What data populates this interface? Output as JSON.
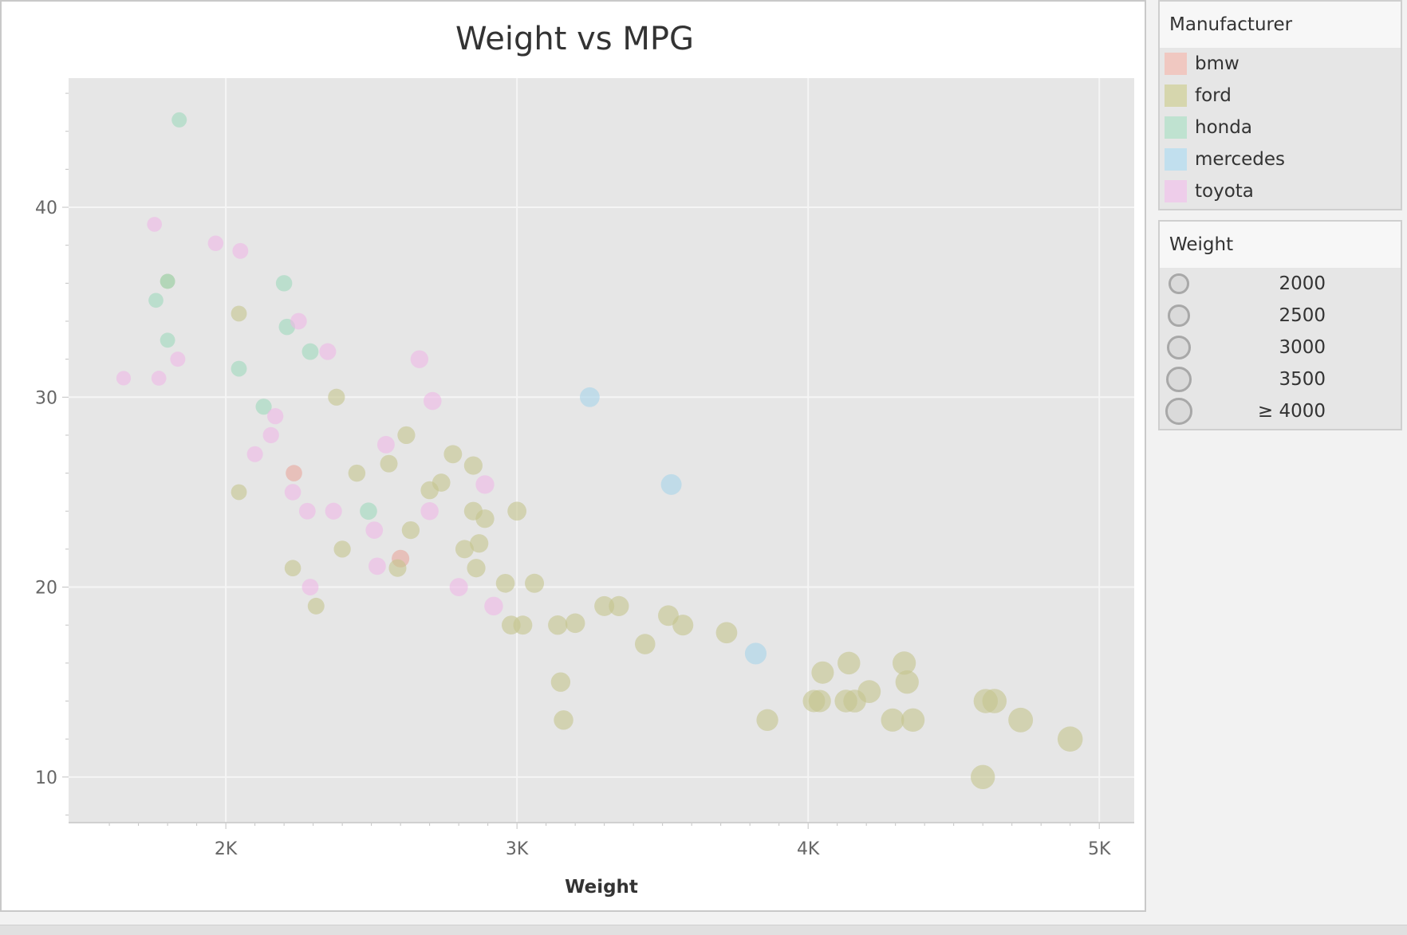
{
  "chart_data": {
    "type": "scatter",
    "title": "Weight vs MPG",
    "xlabel": "Weight",
    "ylabel": "",
    "xlim": [
      1460,
      5120
    ],
    "ylim": [
      7.6,
      46.8
    ],
    "x_ticks": [
      2000,
      3000,
      4000,
      5000
    ],
    "x_tick_labels": [
      "2K",
      "3K",
      "4K",
      "5K"
    ],
    "y_ticks": [
      10,
      20,
      30,
      40
    ],
    "y_tick_labels": [
      "10",
      "20",
      "30",
      "40"
    ],
    "grid": true,
    "legend_position": "right",
    "series": [
      {
        "name": "bmw",
        "color": "#e8a79c",
        "points": [
          [
            2234,
            26
          ],
          [
            2600,
            21.5
          ]
        ]
      },
      {
        "name": "ford",
        "color": "#c4c48d",
        "points": [
          [
            1800,
            36.1
          ],
          [
            2045,
            34.4
          ],
          [
            2045,
            25
          ],
          [
            2380,
            30
          ],
          [
            2230,
            21
          ],
          [
            2310,
            19
          ],
          [
            2450,
            26
          ],
          [
            2400,
            22
          ],
          [
            2560,
            26.5
          ],
          [
            2620,
            28
          ],
          [
            2590,
            21
          ],
          [
            2635,
            23
          ],
          [
            2700,
            25.1
          ],
          [
            2740,
            25.5
          ],
          [
            2780,
            27
          ],
          [
            2850,
            26.4
          ],
          [
            2820,
            22
          ],
          [
            2870,
            22.3
          ],
          [
            2850,
            24
          ],
          [
            2890,
            23.6
          ],
          [
            2860,
            21
          ],
          [
            3000,
            24
          ],
          [
            2960,
            20.2
          ],
          [
            3060,
            20.2
          ],
          [
            2980,
            18
          ],
          [
            3020,
            18
          ],
          [
            3140,
            18
          ],
          [
            3200,
            18.1
          ],
          [
            3300,
            19
          ],
          [
            3350,
            19
          ],
          [
            3150,
            15
          ],
          [
            3160,
            13
          ],
          [
            3440,
            17
          ],
          [
            3520,
            18.5
          ],
          [
            3570,
            18
          ],
          [
            3720,
            17.6
          ],
          [
            3860,
            13
          ],
          [
            4040,
            14
          ],
          [
            4050,
            15.5
          ],
          [
            4020,
            14
          ],
          [
            4140,
            16
          ],
          [
            4130,
            14
          ],
          [
            4160,
            14
          ],
          [
            4210,
            14.5
          ],
          [
            4330,
            16
          ],
          [
            4340,
            15
          ],
          [
            4290,
            13
          ],
          [
            4360,
            13
          ],
          [
            4610,
            14
          ],
          [
            4640,
            14
          ],
          [
            4600,
            10
          ],
          [
            4730,
            13
          ],
          [
            4900,
            12
          ]
        ]
      },
      {
        "name": "honda",
        "color": "#9fd9bd",
        "points": [
          [
            1840,
            44.6
          ],
          [
            1760,
            35.1
          ],
          [
            1800,
            36.1
          ],
          [
            1800,
            33
          ],
          [
            2045,
            31.5
          ],
          [
            2200,
            36
          ],
          [
            2210,
            33.7
          ],
          [
            2290,
            32.4
          ],
          [
            2130,
            29.5
          ],
          [
            2490,
            24
          ]
        ]
      },
      {
        "name": "mercedes",
        "color": "#a7d3ea",
        "points": [
          [
            3250,
            30
          ],
          [
            3530,
            25.4
          ],
          [
            3820,
            16.5
          ]
        ]
      },
      {
        "name": "toyota",
        "color": "#efb8e6",
        "points": [
          [
            1649,
            31
          ],
          [
            1755,
            39.1
          ],
          [
            1770,
            31
          ],
          [
            1835,
            32
          ],
          [
            1965,
            38.1
          ],
          [
            2050,
            37.7
          ],
          [
            2100,
            27
          ],
          [
            2155,
            28
          ],
          [
            2170,
            29
          ],
          [
            2230,
            25
          ],
          [
            2250,
            34
          ],
          [
            2280,
            24
          ],
          [
            2290,
            20
          ],
          [
            2350,
            32.4
          ],
          [
            2370,
            24
          ],
          [
            2510,
            23
          ],
          [
            2520,
            21.1
          ],
          [
            2550,
            27.5
          ],
          [
            2665,
            32
          ],
          [
            2710,
            29.8
          ],
          [
            2700,
            24
          ],
          [
            2800,
            20
          ],
          [
            2890,
            25.4
          ],
          [
            2920,
            19
          ]
        ]
      }
    ]
  },
  "legend_color": {
    "title": "Manufacturer",
    "items": [
      {
        "label": "bmw",
        "color": "#f0c8c1"
      },
      {
        "label": "ford",
        "color": "#d6d6ad"
      },
      {
        "label": "honda",
        "color": "#bfe2d0"
      },
      {
        "label": "mercedes",
        "color": "#c1dfee"
      },
      {
        "label": "toyota",
        "color": "#eecdea"
      }
    ]
  },
  "legend_size": {
    "title": "Weight",
    "items": [
      {
        "label": "2000",
        "value": 2000
      },
      {
        "label": "2500",
        "value": 2500
      },
      {
        "label": "3000",
        "value": 3000
      },
      {
        "label": "3500",
        "value": 3500
      },
      {
        "label": "≥ 4000",
        "value": 4000
      }
    ]
  }
}
